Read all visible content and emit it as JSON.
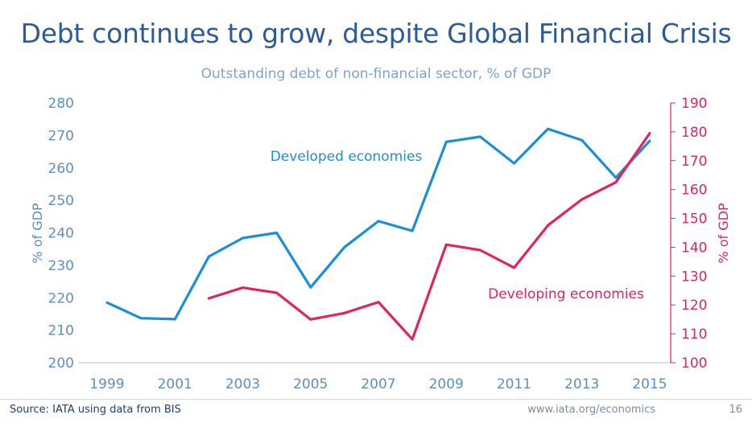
{
  "slide": {
    "title": "Debt continues to grow, despite Global Financial Crisis",
    "source": "Source: IATA using data from BIS",
    "url": "www.iata.org/economics",
    "page": "16"
  },
  "colors": {
    "developed": "#1b8fd6",
    "developing": "#e0245e",
    "left_axis_text": "#5b8ec9",
    "right_axis_text": "#e0245e",
    "title": "#2e5a97",
    "subtitle": "#7fa3cf"
  },
  "chart_data": {
    "type": "line",
    "title": "Outstanding debt of non-financial sector, % of GDP",
    "x": [
      1999,
      2000,
      2001,
      2002,
      2003,
      2004,
      2005,
      2006,
      2007,
      2008,
      2009,
      2010,
      2011,
      2012,
      2013,
      2014,
      2015
    ],
    "x_tick_labels": [
      "1999",
      "2001",
      "2003",
      "2005",
      "2007",
      "2009",
      "2011",
      "2013",
      "2015"
    ],
    "xlim": [
      1999,
      2015
    ],
    "y_left": {
      "label": "% of GDP",
      "lim": [
        200,
        280
      ],
      "ticks": [
        "200",
        "210",
        "220",
        "230",
        "240",
        "250",
        "260",
        "270",
        "280"
      ]
    },
    "y_right": {
      "label": "% of GDP",
      "lim": [
        100,
        190
      ],
      "ticks": [
        "100",
        "110",
        "120",
        "130",
        "140",
        "150",
        "160",
        "170",
        "180",
        "190"
      ]
    },
    "series": [
      {
        "name": "Developed economies",
        "axis": "left",
        "x": [
          1999,
          2000,
          2001,
          2002,
          2003,
          2004,
          2005,
          2006,
          2007,
          2008,
          2009,
          2010,
          2011,
          2012,
          2013,
          2014,
          2015
        ],
        "values": [
          218.5,
          213.7,
          213.4,
          232.7,
          238.4,
          240.0,
          223.2,
          235.6,
          243.6,
          240.6,
          268.0,
          269.6,
          261.4,
          272.0,
          268.5,
          257.0,
          268.3
        ]
      },
      {
        "name": "Developing economies",
        "axis": "right",
        "x": [
          2002,
          2003,
          2004,
          2005,
          2006,
          2007,
          2008,
          2009,
          2010,
          2011,
          2012,
          2013,
          2014,
          2015
        ],
        "values": [
          122.3,
          126.0,
          124.2,
          115.0,
          117.2,
          121.0,
          108.1,
          140.9,
          139.0,
          132.9,
          147.6,
          156.6,
          162.5,
          179.5
        ]
      }
    ],
    "grid": false,
    "legend": "inline labels"
  }
}
